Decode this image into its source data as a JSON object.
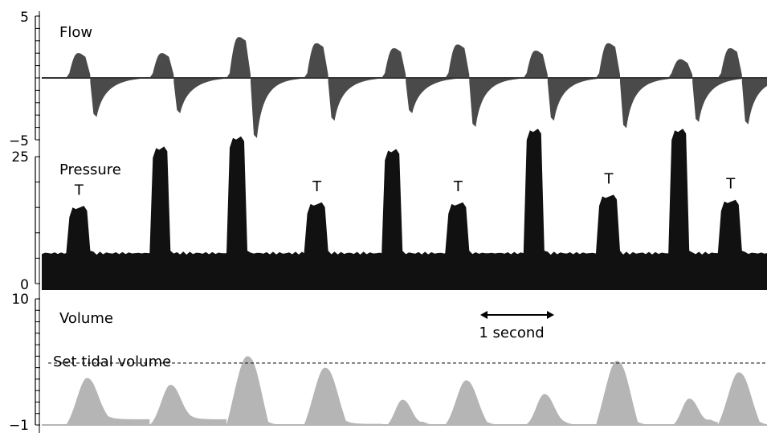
{
  "chart_data": [
    {
      "type": "area",
      "title": "Flow",
      "ylim": [
        -5,
        5
      ],
      "y_tick_labels": [
        "5",
        "−5"
      ],
      "baseline": 0,
      "fill_color": "#4a4a4a",
      "breaths": [
        {
          "t": 0.33,
          "peak": 2.1,
          "trough": -2.9
        },
        {
          "t": 1.46,
          "peak": 2.1,
          "trough": -2.6
        },
        {
          "t": 2.5,
          "peak": 3.4,
          "trough": -4.6
        },
        {
          "t": 3.55,
          "peak": 2.9,
          "trough": -3.2
        },
        {
          "t": 4.6,
          "peak": 2.5,
          "trough": -2.6
        },
        {
          "t": 5.46,
          "peak": 2.8,
          "trough": -3.7
        },
        {
          "t": 6.52,
          "peak": 2.3,
          "trough": -3.2
        },
        {
          "t": 7.5,
          "peak": 2.9,
          "trough": -3.8
        },
        {
          "t": 8.48,
          "peak": 1.6,
          "trough": -3.3
        },
        {
          "t": 9.15,
          "peak": 2.5,
          "trough": -3.5
        }
      ]
    },
    {
      "type": "area",
      "title": "Pressure",
      "ylim": [
        0,
        25
      ],
      "y_tick_labels": [
        "25",
        "0"
      ],
      "baseline": 6,
      "fill_color": "#111111",
      "breaths": [
        {
          "t": 0.33,
          "peak": 15.3,
          "label": "T"
        },
        {
          "t": 1.46,
          "peak": 27.0
        },
        {
          "t": 2.5,
          "peak": 29.0
        },
        {
          "t": 3.55,
          "peak": 16.0,
          "label": "T"
        },
        {
          "t": 4.6,
          "peak": 26.5
        },
        {
          "t": 5.46,
          "peak": 16.0,
          "label": "T"
        },
        {
          "t": 6.52,
          "peak": 30.5
        },
        {
          "t": 7.5,
          "peak": 17.5,
          "label": "T"
        },
        {
          "t": 8.48,
          "peak": 30.5
        },
        {
          "t": 9.15,
          "peak": 16.5,
          "label": "T"
        }
      ]
    },
    {
      "type": "area",
      "title": "Volume",
      "ylim": [
        -1,
        10
      ],
      "y_tick_labels": [
        "10",
        "−1"
      ],
      "baseline": -1,
      "fill_color": "#b5b5b5",
      "reference_line": {
        "label": "Set tidal volume",
        "value": 4.4,
        "style": "dashed"
      },
      "scale_bar": {
        "label": "1 second",
        "duration_s": 1
      },
      "breaths": [
        {
          "t": 0.33,
          "peak": 3.1,
          "end": -0.5
        },
        {
          "t": 1.46,
          "peak": 2.5,
          "end": -0.5
        },
        {
          "t": 2.5,
          "peak": 5.0,
          "end": -1.0
        },
        {
          "t": 3.55,
          "peak": 4.0,
          "end": -0.9
        },
        {
          "t": 4.6,
          "peak": 1.2,
          "end": -1.0
        },
        {
          "t": 5.46,
          "peak": 2.9,
          "end": -1.0
        },
        {
          "t": 6.52,
          "peak": 1.7,
          "end": -1.0
        },
        {
          "t": 7.5,
          "peak": 4.6,
          "end": -1.0
        },
        {
          "t": 8.48,
          "peak": 1.3,
          "end": -0.8
        },
        {
          "t": 9.15,
          "peak": 3.6,
          "end": -1.0
        }
      ]
    }
  ]
}
